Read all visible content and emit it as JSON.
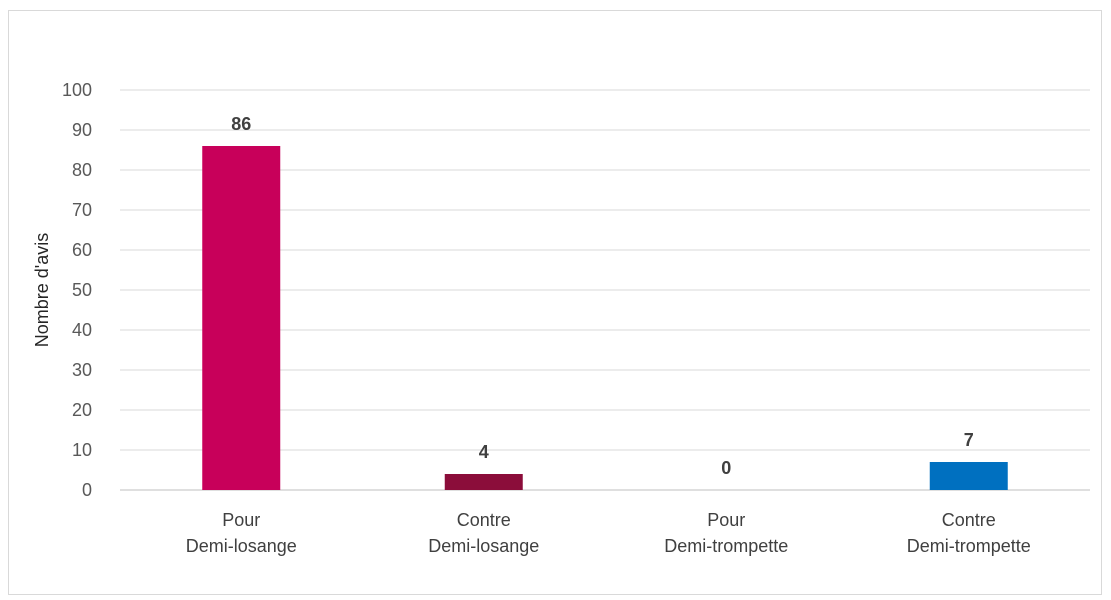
{
  "chart_data": {
    "type": "bar",
    "title": "",
    "xlabel": "",
    "ylabel": "Nombre d'avis",
    "ylim": [
      0,
      100
    ],
    "yticks": [
      0,
      10,
      20,
      30,
      40,
      50,
      60,
      70,
      80,
      90,
      100
    ],
    "grid": true,
    "categories": [
      [
        "Pour",
        "Demi-losange"
      ],
      [
        "Contre",
        "Demi-losange"
      ],
      [
        "Pour",
        "Demi-trompette"
      ],
      [
        "Contre",
        "Demi-trompette"
      ]
    ],
    "values": [
      86,
      4,
      0,
      7
    ],
    "colors": [
      "#c8005a",
      "#8b0d3a",
      "#c8005a",
      "#0070c0"
    ],
    "data_labels": [
      "86",
      "4",
      "0",
      "7"
    ]
  }
}
